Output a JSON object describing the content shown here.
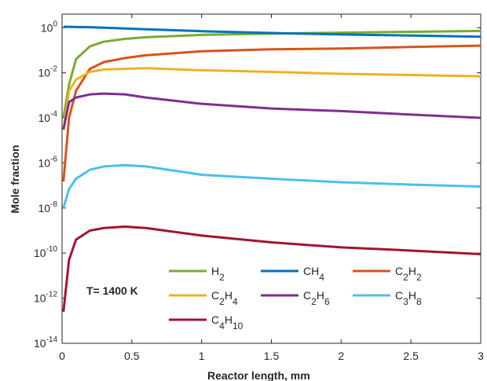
{
  "chart_data": {
    "type": "line",
    "xlabel": "Reactor length, mm",
    "ylabel": "Mole fraction",
    "annotation": "T= 1400 K",
    "x": [
      0.01,
      0.05,
      0.1,
      0.2,
      0.3,
      0.45,
      0.6,
      1,
      1.5,
      2,
      2.5,
      3
    ],
    "series": [
      {
        "name": "H2",
        "color": "#77ac30",
        "values": [
          0.0001,
          0.003,
          0.04,
          0.15,
          0.24,
          0.32,
          0.38,
          0.48,
          0.55,
          0.6,
          0.66,
          0.72
        ]
      },
      {
        "name": "CH4",
        "color": "#0072bd",
        "values": [
          1.1,
          1.1,
          1.08,
          1.05,
          1.0,
          0.92,
          0.85,
          0.7,
          0.58,
          0.5,
          0.45,
          0.4
        ]
      },
      {
        "name": "C2H2",
        "color": "#d95319",
        "values": [
          1.5e-07,
          0.0001,
          0.0016,
          0.015,
          0.03,
          0.045,
          0.06,
          0.09,
          0.11,
          0.12,
          0.14,
          0.16
        ]
      },
      {
        "name": "C2H4",
        "color": "#edb120",
        "values": [
          3e-05,
          0.0016,
          0.005,
          0.011,
          0.014,
          0.015,
          0.016,
          0.013,
          0.011,
          0.009,
          0.008,
          0.007
        ]
      },
      {
        "name": "C2H6",
        "color": "#7e2f8e",
        "values": [
          3e-05,
          0.0005,
          0.0008,
          0.0011,
          0.0012,
          0.0011,
          0.0008,
          0.00042,
          0.00026,
          0.0002,
          0.00014,
          0.0001
        ]
      },
      {
        "name": "C3H8",
        "color": "#4dbeee",
        "values": [
          1e-08,
          7e-08,
          2e-07,
          5e-07,
          7e-07,
          8e-07,
          7e-07,
          3e-07,
          2e-07,
          1.4e-07,
          1.1e-07,
          9e-08
        ]
      },
      {
        "name": "C4H10",
        "color": "#a2142f",
        "values": [
          2.5e-13,
          5e-11,
          4e-10,
          1e-09,
          1.3e-09,
          1.5e-09,
          1.3e-09,
          6e-10,
          3e-10,
          1.8e-10,
          1.3e-10,
          9e-11
        ]
      }
    ],
    "xlim": [
      0,
      3
    ],
    "xticks": [
      0,
      0.5,
      1,
      1.5,
      2,
      2.5,
      3
    ],
    "ylim": [
      1e-14,
      4
    ],
    "ylog": true,
    "yticks": [
      {
        "value": 1,
        "label": "10^0"
      },
      {
        "value": 0.01,
        "label": "10^-2"
      },
      {
        "value": 0.0001,
        "label": "10^-4"
      },
      {
        "value": 1e-06,
        "label": "10^-6"
      },
      {
        "value": 1e-08,
        "label": "10^-8"
      },
      {
        "value": 1e-10,
        "label": "10^-10"
      },
      {
        "value": 1e-12,
        "label": "10^-12"
      },
      {
        "value": 1e-14,
        "label": "10^-14"
      }
    ],
    "grid": false
  }
}
